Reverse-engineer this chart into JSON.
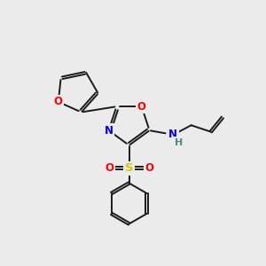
{
  "background_color": "#ebebeb",
  "bond_color": "#1a1a1a",
  "bond_width": 1.4,
  "atom_colors": {
    "O": "#ff0000",
    "N": "#0000ff",
    "S": "#cccc00",
    "H": "#4a8a8a",
    "C": "#1a1a1a"
  },
  "fig_width": 3.0,
  "fig_height": 3.0,
  "dpi": 100
}
